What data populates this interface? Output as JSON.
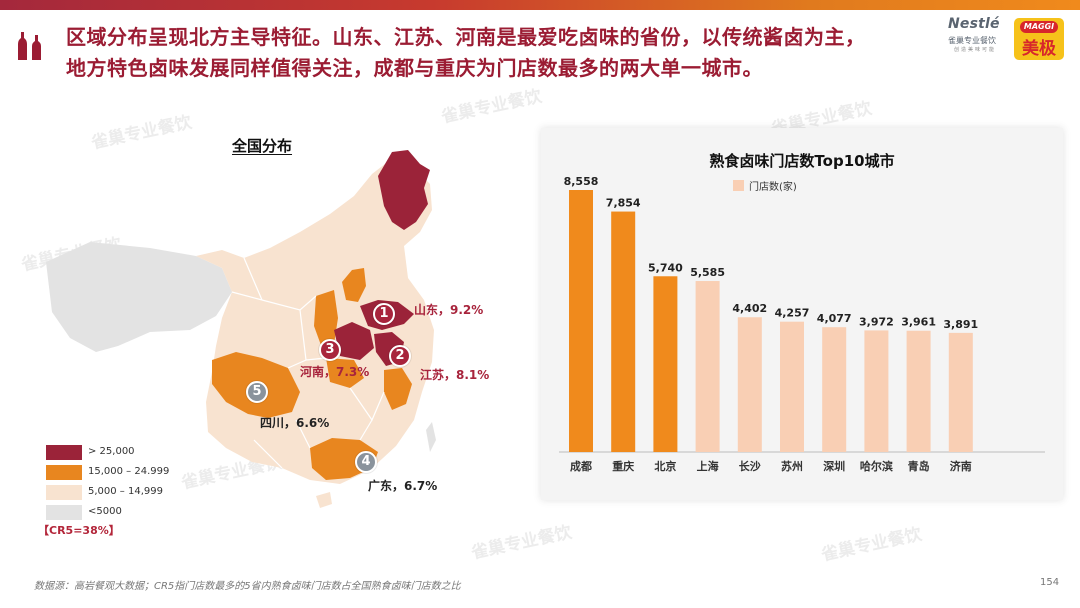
{
  "headline": {
    "line1": "区域分布呈现北方主导特征。山东、江苏、河南是最爱吃卤味的省份，以传统酱卤为主，",
    "line2": "地方特色卤味发展同样值得关注，成都与重庆为门店数最多的两大单一城市。"
  },
  "logos": {
    "nestle_word": "Nestlé",
    "nestle_sub": "雀巢专业餐饮",
    "nestle_sub2": "创造美味可能",
    "maggi_word": "MAGGI",
    "maggi_cn": "美极"
  },
  "watermark_text": "雀巢专业餐饮",
  "map": {
    "title": "全国分布",
    "markers": [
      {
        "rank": "1",
        "label": "山东，9.2%"
      },
      {
        "rank": "2",
        "label": "江苏，8.1%"
      },
      {
        "rank": "3",
        "label": "河南，7.3%"
      },
      {
        "rank": "4",
        "label": "广东，6.7%"
      },
      {
        "rank": "5",
        "label": "四川，6.6%"
      }
    ],
    "legend": [
      {
        "label": "> 25,000",
        "color": "#9b2339"
      },
      {
        "label": "15,000 – 24.999",
        "color": "#e8861f"
      },
      {
        "label": "5,000 – 14,999",
        "color": "#f8e3d0"
      },
      {
        "label": "<5000",
        "color": "#e3e3e3"
      }
    ],
    "cr5": "【CR5=38%】",
    "colors": {
      "dark": "#9b2339",
      "orange": "#e8861f",
      "light": "#f8e3d0",
      "grey": "#e3e3e3",
      "marker_red": "#a8243c",
      "marker_grey": "#8a939c"
    }
  },
  "chart_data": {
    "type": "bar",
    "title": "熟食卤味门店数Top10城市",
    "legend": [
      "门店数(家)"
    ],
    "categories": [
      "成都",
      "重庆",
      "北京",
      "上海",
      "长沙",
      "苏州",
      "深圳",
      "哈尔滨",
      "青岛",
      "济南"
    ],
    "values": [
      8558,
      7854,
      5740,
      5585,
      4402,
      4257,
      4077,
      3972,
      3961,
      3891
    ],
    "value_labels": [
      "8,558",
      "7,854",
      "5,740",
      "5,585",
      "4,402",
      "4,257",
      "4,077",
      "3,972",
      "3,961",
      "3,891"
    ],
    "highlight_count": 3,
    "colors": {
      "highlight": "#f08a1c",
      "normal": "#f9cfb4"
    },
    "ylim": [
      0,
      8558
    ],
    "xlabel": "",
    "ylabel": ""
  },
  "footer": {
    "source": "数据源：高岩餐观大数据；CR5指门店数最多的5省内熟食卤味门店数占全国熟食卤味门店数之比",
    "page": "154"
  }
}
